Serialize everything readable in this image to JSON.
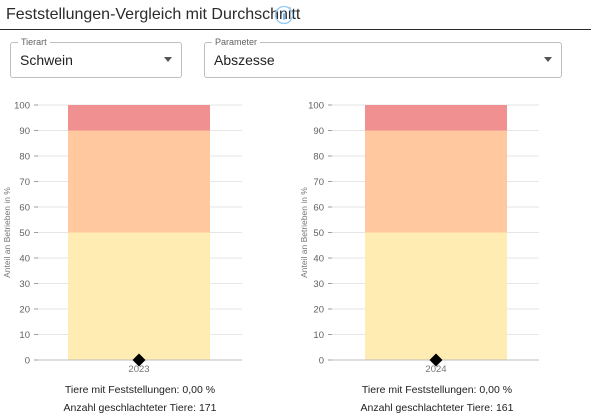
{
  "header": {
    "title": "Feststellungen-Vergleich mit Durchschnitt",
    "info_icon": "info-circle-icon"
  },
  "filters": {
    "tierart": {
      "label": "Tierart",
      "value": "Schwein"
    },
    "parameter": {
      "label": "Parameter",
      "value": "Abszesse"
    }
  },
  "colors": {
    "band_high": "#f09090",
    "band_mid": "#ffc89e",
    "band_low": "#ffecb3",
    "marker": "#000000",
    "accent": "#64b5f6"
  },
  "chart_data": [
    {
      "type": "bar",
      "categories": [
        "2023"
      ],
      "bands": [
        {
          "from": 0,
          "to": 50,
          "color": "#ffecb3"
        },
        {
          "from": 50,
          "to": 90,
          "color": "#ffc89e"
        },
        {
          "from": 90,
          "to": 100,
          "color": "#f09090"
        }
      ],
      "marker_value": 0.0,
      "ylabel": "Anteil an Betrieben in %",
      "ylim": [
        0,
        100
      ],
      "yticks": [
        0,
        10,
        20,
        30,
        40,
        50,
        60,
        70,
        80,
        90,
        100
      ],
      "grid": true,
      "caption_lines": [
        "Tiere mit Feststellungen: 0,00 %",
        "Anzahl geschlachteter Tiere: 171"
      ]
    },
    {
      "type": "bar",
      "categories": [
        "2024"
      ],
      "bands": [
        {
          "from": 0,
          "to": 50,
          "color": "#ffecb3"
        },
        {
          "from": 50,
          "to": 90,
          "color": "#ffc89e"
        },
        {
          "from": 90,
          "to": 100,
          "color": "#f09090"
        }
      ],
      "marker_value": 0.0,
      "ylabel": "Anteil an Betrieben in %",
      "ylim": [
        0,
        100
      ],
      "yticks": [
        0,
        10,
        20,
        30,
        40,
        50,
        60,
        70,
        80,
        90,
        100
      ],
      "grid": true,
      "caption_lines": [
        "Tiere mit Feststellungen: 0,00 %",
        "Anzahl geschlachteter Tiere: 161"
      ]
    }
  ]
}
